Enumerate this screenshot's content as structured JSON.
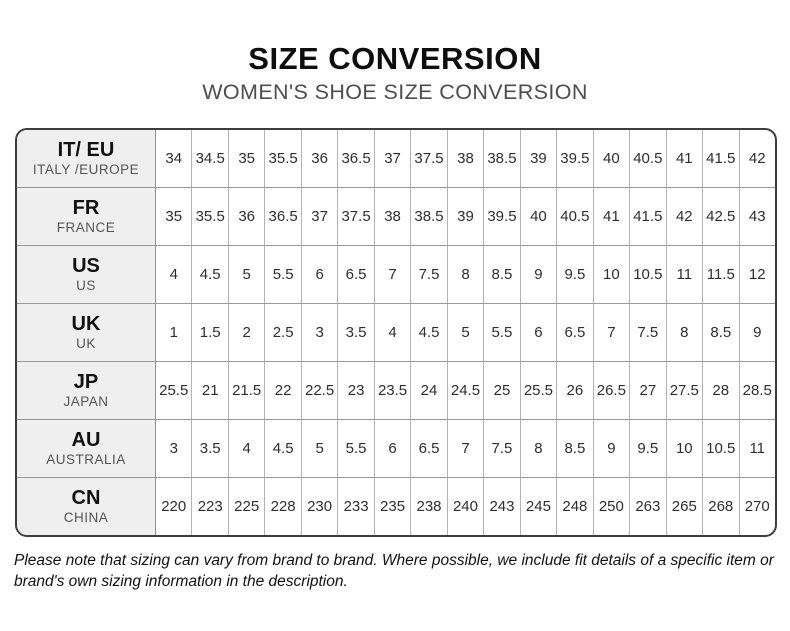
{
  "title": "SIZE CONVERSION",
  "subtitle": "WOMEN'S SHOE SIZE CONVERSION",
  "chart_data": {
    "type": "table",
    "title": "SIZE CONVERSION",
    "subtitle": "WOMEN'S SHOE SIZE CONVERSION",
    "rows": [
      {
        "code": "IT/ EU",
        "region": "ITALY /EUROPE",
        "values": [
          "34",
          "34.5",
          "35",
          "35.5",
          "36",
          "36.5",
          "37",
          "37.5",
          "38",
          "38.5",
          "39",
          "39.5",
          "40",
          "40.5",
          "41",
          "41.5",
          "42"
        ]
      },
      {
        "code": "FR",
        "region": "FRANCE",
        "values": [
          "35",
          "35.5",
          "36",
          "36.5",
          "37",
          "37.5",
          "38",
          "38.5",
          "39",
          "39.5",
          "40",
          "40.5",
          "41",
          "41.5",
          "42",
          "42.5",
          "43"
        ]
      },
      {
        "code": "US",
        "region": "US",
        "values": [
          "4",
          "4.5",
          "5",
          "5.5",
          "6",
          "6.5",
          "7",
          "7.5",
          "8",
          "8.5",
          "9",
          "9.5",
          "10",
          "10.5",
          "11",
          "11.5",
          "12"
        ]
      },
      {
        "code": "UK",
        "region": "UK",
        "values": [
          "1",
          "1.5",
          "2",
          "2.5",
          "3",
          "3.5",
          "4",
          "4.5",
          "5",
          "5.5",
          "6",
          "6.5",
          "7",
          "7.5",
          "8",
          "8.5",
          "9"
        ]
      },
      {
        "code": "JP",
        "region": "JAPAN",
        "values": [
          "25.5",
          "21",
          "21.5",
          "22",
          "22.5",
          "23",
          "23.5",
          "24",
          "24.5",
          "25",
          "25.5",
          "26",
          "26.5",
          "27",
          "27.5",
          "28",
          "28.5"
        ]
      },
      {
        "code": "AU",
        "region": "AUSTRALIA",
        "values": [
          "3",
          "3.5",
          "4",
          "4.5",
          "5",
          "5.5",
          "6",
          "6.5",
          "7",
          "7.5",
          "8",
          "8.5",
          "9",
          "9.5",
          "10",
          "10.5",
          "11"
        ]
      },
      {
        "code": "CN",
        "region": "CHINA",
        "values": [
          "220",
          "223",
          "225",
          "228",
          "230",
          "233",
          "235",
          "238",
          "240",
          "243",
          "245",
          "248",
          "250",
          "263",
          "265",
          "268",
          "270"
        ]
      }
    ]
  },
  "colors": {
    "title_text": "#0e0e0e",
    "subtitle_text": "#4d4d4d",
    "header_cell_bg": "#efefef",
    "outer_border": "#3d3d3d",
    "inner_border": "#999999",
    "cell_text": "#2e2e2e"
  },
  "footer_note": "Please note that sizing can vary from brand to brand. Where possible, we include fit details of a specific item or brand's own sizing information in the description."
}
